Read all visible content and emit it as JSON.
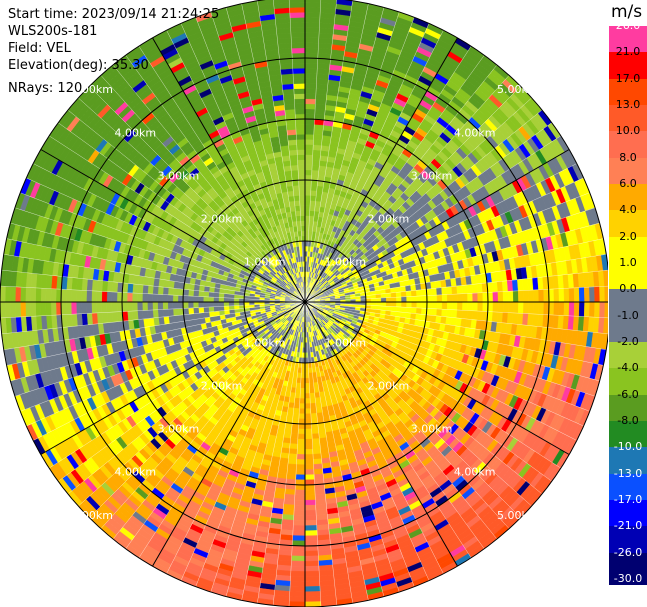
{
  "header": {
    "start_time": "Start time: 2023/09/14 21:24:25",
    "instrument": "WLS200s-181",
    "field": "Field: VEL",
    "elevation": "Elevation(deg): 35.30",
    "nrays": "NRays: 120"
  },
  "chart_data": {
    "type": "heatmap",
    "projection": "polar-ppi",
    "field": "VEL",
    "units": "m/s",
    "range_rings_km": [
      1.0,
      2.0,
      3.0,
      4.0,
      5.0
    ],
    "ring_labels": [
      "1.00km",
      "2.00km",
      "3.00km",
      "4.00km",
      "5.00km"
    ],
    "max_range_km": 5.0,
    "azimuth_lines_deg": [
      0,
      30,
      60,
      90,
      120,
      150,
      180,
      210,
      240,
      270,
      300,
      330
    ],
    "nrays": 120,
    "colorbar": {
      "min": -30.0,
      "max": 26.0,
      "tick_labels": [
        "26.0",
        "21.0",
        "17.0",
        "13.0",
        "10.0",
        "8.0",
        "6.0",
        "4.0",
        "2.0",
        "1.0",
        "0.0",
        "-1.0",
        "-2.0",
        "-4.0",
        "-6.0",
        "-8.0",
        "-10.0",
        "-13.0",
        "-17.0",
        "-21.0",
        "-26.0",
        "-30.0"
      ],
      "bins": [
        {
          "upper": 26.0,
          "color": "#ff3ca0"
        },
        {
          "upper": 21.0,
          "color": "#ff0000"
        },
        {
          "upper": 17.0,
          "color": "#ff4800"
        },
        {
          "upper": 13.0,
          "color": "#ff5a28"
        },
        {
          "upper": 10.0,
          "color": "#ff6e50"
        },
        {
          "upper": 8.0,
          "color": "#ff8055"
        },
        {
          "upper": 6.0,
          "color": "#ffaa00"
        },
        {
          "upper": 4.0,
          "color": "#ffd200"
        },
        {
          "upper": 2.0,
          "color": "#ffff00"
        },
        {
          "upper": 1.0,
          "color": "#ffff00"
        },
        {
          "upper": 0.0,
          "color": "#6e7a8c"
        },
        {
          "upper": -1.0,
          "color": "#6e7a8c"
        },
        {
          "upper": -2.0,
          "color": "#a8d038"
        },
        {
          "upper": -4.0,
          "color": "#8ac420"
        },
        {
          "upper": -6.0,
          "color": "#5a9c20"
        },
        {
          "upper": -8.0,
          "color": "#228b22"
        },
        {
          "upper": -10.0,
          "color": "#1e78b4"
        },
        {
          "upper": -13.0,
          "color": "#0a50ff"
        },
        {
          "upper": -17.0,
          "color": "#0000ff"
        },
        {
          "upper": -21.0,
          "color": "#0000b4"
        },
        {
          "upper": -26.0,
          "color": "#000070"
        }
      ]
    },
    "flow_pattern": {
      "description": "Dipole pattern: approaching (negative) velocities toward the northwest/north, receding (positive) velocities toward the south/southeast",
      "direction_of_max_positive_deg": 160,
      "near_center_radius_km": 1.0,
      "near_center_values": [
        0.0,
        -1.0,
        1.0,
        2.0
      ],
      "mid_range_max_positive": 4.0,
      "far_range_max_positive": 13.0,
      "far_range_max_negative": -8.0,
      "noise_fraction_outer": 0.16
    }
  }
}
